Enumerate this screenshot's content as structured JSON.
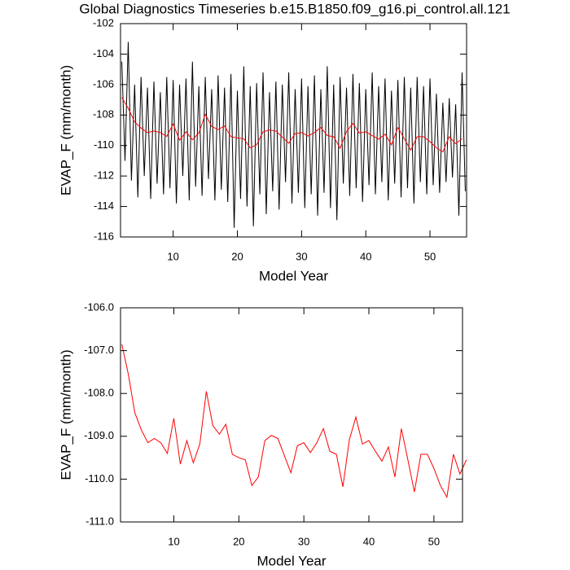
{
  "chart_data": [
    {
      "type": "line",
      "title": "Global Diagnostics Timeseries b.e15.B1850.f09_g16.pi_control.all.121",
      "xlabel": "Model Year",
      "ylabel": "EVAP_F (mm/month)",
      "xlim": [
        1.8,
        55.7
      ],
      "xticks": [
        10,
        20,
        30,
        40,
        50
      ],
      "ylim": [
        -116,
        -102
      ],
      "yticks": [
        -102,
        -104,
        -106,
        -108,
        -110,
        -112,
        -114,
        -116
      ],
      "series": [
        {
          "color": "#000000",
          "x": [
            2,
            2.5,
            3,
            3.5,
            4,
            4.5,
            5,
            5.5,
            6,
            6.5,
            7,
            7.5,
            8,
            8.5,
            9,
            9.5,
            10,
            10.5,
            11,
            11.5,
            12,
            12.5,
            13,
            13.5,
            14,
            14.5,
            15,
            15.5,
            16,
            16.5,
            17,
            17.5,
            18,
            18.5,
            19,
            19.5,
            20,
            20.5,
            21,
            21.5,
            22,
            22.5,
            23,
            23.5,
            24,
            24.5,
            25,
            25.5,
            26,
            26.5,
            27,
            27.5,
            28,
            28.5,
            29,
            29.5,
            30,
            30.5,
            31,
            31.5,
            32,
            32.5,
            33,
            33.5,
            34,
            34.5,
            35,
            35.5,
            36,
            36.5,
            37,
            37.5,
            38,
            38.5,
            39,
            39.5,
            40,
            40.5,
            41,
            41.5,
            42,
            42.5,
            43,
            43.5,
            44,
            44.5,
            45,
            45.5,
            46,
            46.5,
            47,
            47.5,
            48,
            48.5,
            49,
            49.5,
            50,
            50.5,
            51,
            51.5,
            52,
            52.5,
            53,
            53.5,
            54,
            54.5,
            55,
            55.5
          ],
          "values": [
            -104.5,
            -111,
            -103.2,
            -112.3,
            -106,
            -113.4,
            -105.5,
            -112,
            -106.2,
            -113.5,
            -105.8,
            -112.5,
            -106.5,
            -113.2,
            -105.5,
            -112.8,
            -105.7,
            -113.8,
            -106,
            -112,
            -105.6,
            -113.6,
            -104.5,
            -112.7,
            -106.1,
            -113.3,
            -105.5,
            -112.2,
            -106.3,
            -113.6,
            -105.4,
            -112.9,
            -106.2,
            -113.7,
            -105.3,
            -115.4,
            -106.4,
            -113.5,
            -104.8,
            -114,
            -106.1,
            -115.3,
            -105.9,
            -113.2,
            -105.2,
            -114.5,
            -106.5,
            -113,
            -105.8,
            -114.2,
            -106,
            -112.4,
            -105.2,
            -113.8,
            -106.3,
            -113.1,
            -105.6,
            -114.1,
            -106.1,
            -113.2,
            -105.4,
            -114.6,
            -106.3,
            -113.1,
            -104.8,
            -114.1,
            -106,
            -114.9,
            -105.5,
            -112.5,
            -106.2,
            -113.3,
            -105.3,
            -112.8,
            -105.9,
            -113.7,
            -106.3,
            -112.6,
            -105.2,
            -113.2,
            -106.1,
            -112.4,
            -105.6,
            -113.6,
            -106.4,
            -112.5,
            -105.7,
            -113.4,
            -105.5,
            -112.8,
            -106.2,
            -113.8,
            -105.5,
            -112.4,
            -106.1,
            -113.2,
            -105.6,
            -112.6,
            -106.6,
            -113.1,
            -107.2,
            -112.4,
            -106.9,
            -112.1,
            -107.3,
            -114.6,
            -105.2,
            -113
          ]
        },
        {
          "color": "#ff0000",
          "x": [
            2,
            3,
            4,
            5,
            6,
            7,
            8,
            9,
            10,
            11,
            12,
            13,
            14,
            15,
            16,
            17,
            18,
            19,
            20,
            21,
            22,
            23,
            24,
            25,
            26,
            27,
            28,
            29,
            30,
            31,
            32,
            33,
            34,
            35,
            36,
            37,
            38,
            39,
            40,
            41,
            42,
            43,
            44,
            45,
            46,
            47,
            48,
            49,
            50,
            51,
            52,
            53,
            54,
            55
          ],
          "values": [
            -106.85,
            -107.55,
            -108.45,
            -108.85,
            -109.15,
            -109.05,
            -109.15,
            -109.4,
            -108.58,
            -109.65,
            -109.1,
            -109.62,
            -109.18,
            -107.95,
            -108.75,
            -108.95,
            -108.72,
            -109.42,
            -109.5,
            -109.55,
            -110.15,
            -109.95,
            -109.1,
            -108.98,
            -109.05,
            -109.45,
            -109.85,
            -109.22,
            -109.15,
            -109.38,
            -109.15,
            -108.82,
            -109.35,
            -109.42,
            -110.18,
            -109.08,
            -108.55,
            -109.18,
            -109.1,
            -109.35,
            -109.58,
            -109.25,
            -109.95,
            -108.82,
            -109.55,
            -110.3,
            -109.42,
            -109.42,
            -109.75,
            -110.15,
            -110.42,
            -109.42,
            -109.88,
            -109.55
          ]
        }
      ]
    },
    {
      "type": "line",
      "xlabel": "Model Year",
      "ylabel": "EVAP_F (mm/month)",
      "xlim": [
        1.8,
        54.4
      ],
      "xticks": [
        10,
        20,
        30,
        40,
        50
      ],
      "ylim": [
        -111,
        -106
      ],
      "yticks": [
        {
          "value": -106,
          "label": "-106.0"
        },
        {
          "value": -107,
          "label": "-107.0"
        },
        {
          "value": -108,
          "label": "-108.0"
        },
        {
          "value": -109,
          "label": "-109.0"
        },
        {
          "value": -110,
          "label": "-110.0"
        },
        {
          "value": -111,
          "label": "-111.0"
        }
      ],
      "series": [
        {
          "color": "#ff0000",
          "x": [
            2,
            3,
            4,
            5,
            6,
            7,
            8,
            9,
            10,
            11,
            12,
            13,
            14,
            15,
            16,
            17,
            18,
            19,
            20,
            21,
            22,
            23,
            24,
            25,
            26,
            27,
            28,
            29,
            30,
            31,
            32,
            33,
            34,
            35,
            36,
            37,
            38,
            39,
            40,
            41,
            42,
            43,
            44,
            45,
            46,
            47,
            48,
            49,
            50,
            51,
            52,
            53,
            54,
            55
          ],
          "values": [
            -106.85,
            -107.55,
            -108.45,
            -108.85,
            -109.15,
            -109.05,
            -109.15,
            -109.4,
            -108.58,
            -109.65,
            -109.1,
            -109.62,
            -109.18,
            -107.95,
            -108.75,
            -108.95,
            -108.72,
            -109.42,
            -109.5,
            -109.55,
            -110.15,
            -109.95,
            -109.1,
            -108.98,
            -109.05,
            -109.45,
            -109.85,
            -109.22,
            -109.15,
            -109.38,
            -109.15,
            -108.82,
            -109.35,
            -109.42,
            -110.18,
            -109.08,
            -108.55,
            -109.18,
            -109.1,
            -109.35,
            -109.58,
            -109.25,
            -109.95,
            -108.82,
            -109.55,
            -110.3,
            -109.42,
            -109.42,
            -109.75,
            -110.15,
            -110.42,
            -109.42,
            -109.88,
            -109.55
          ]
        }
      ]
    }
  ]
}
